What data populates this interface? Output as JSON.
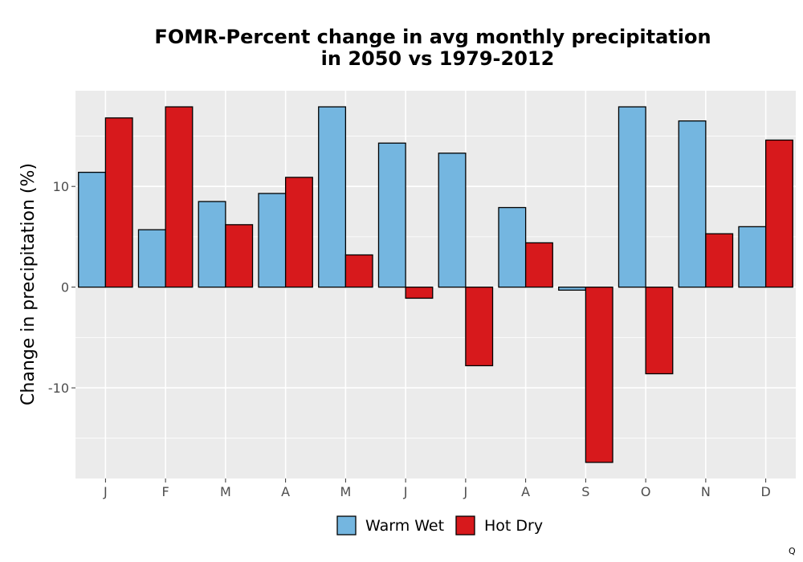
{
  "chart_data": {
    "type": "bar",
    "title_line1": "FOMR-Percent change in avg monthly precipitation",
    "title_line2": "in 2050 vs 1979-2012",
    "xlabel": "",
    "ylabel": "Change in precipitation (%)",
    "categories": [
      "J",
      "F",
      "M",
      "A",
      "M",
      "J",
      "J",
      "A",
      "S",
      "O",
      "N",
      "D"
    ],
    "series": [
      {
        "name": "Warm Wet",
        "color": "#74b6e0",
        "values": [
          11.4,
          5.7,
          8.5,
          9.3,
          17.9,
          14.3,
          13.3,
          7.9,
          -0.3,
          17.9,
          16.5,
          6.0
        ]
      },
      {
        "name": "Hot Dry",
        "color": "#d7191c",
        "values": [
          16.8,
          17.9,
          6.2,
          10.9,
          3.2,
          -1.1,
          -7.8,
          4.4,
          -17.4,
          -8.6,
          5.3,
          14.6
        ]
      }
    ],
    "ylim": [
      -19.0,
      19.5
    ],
    "yticks": [
      -10,
      0,
      10
    ],
    "grid": true,
    "legend_position": "bottom",
    "background": "#ebebeb"
  },
  "corner_mark": "Q"
}
